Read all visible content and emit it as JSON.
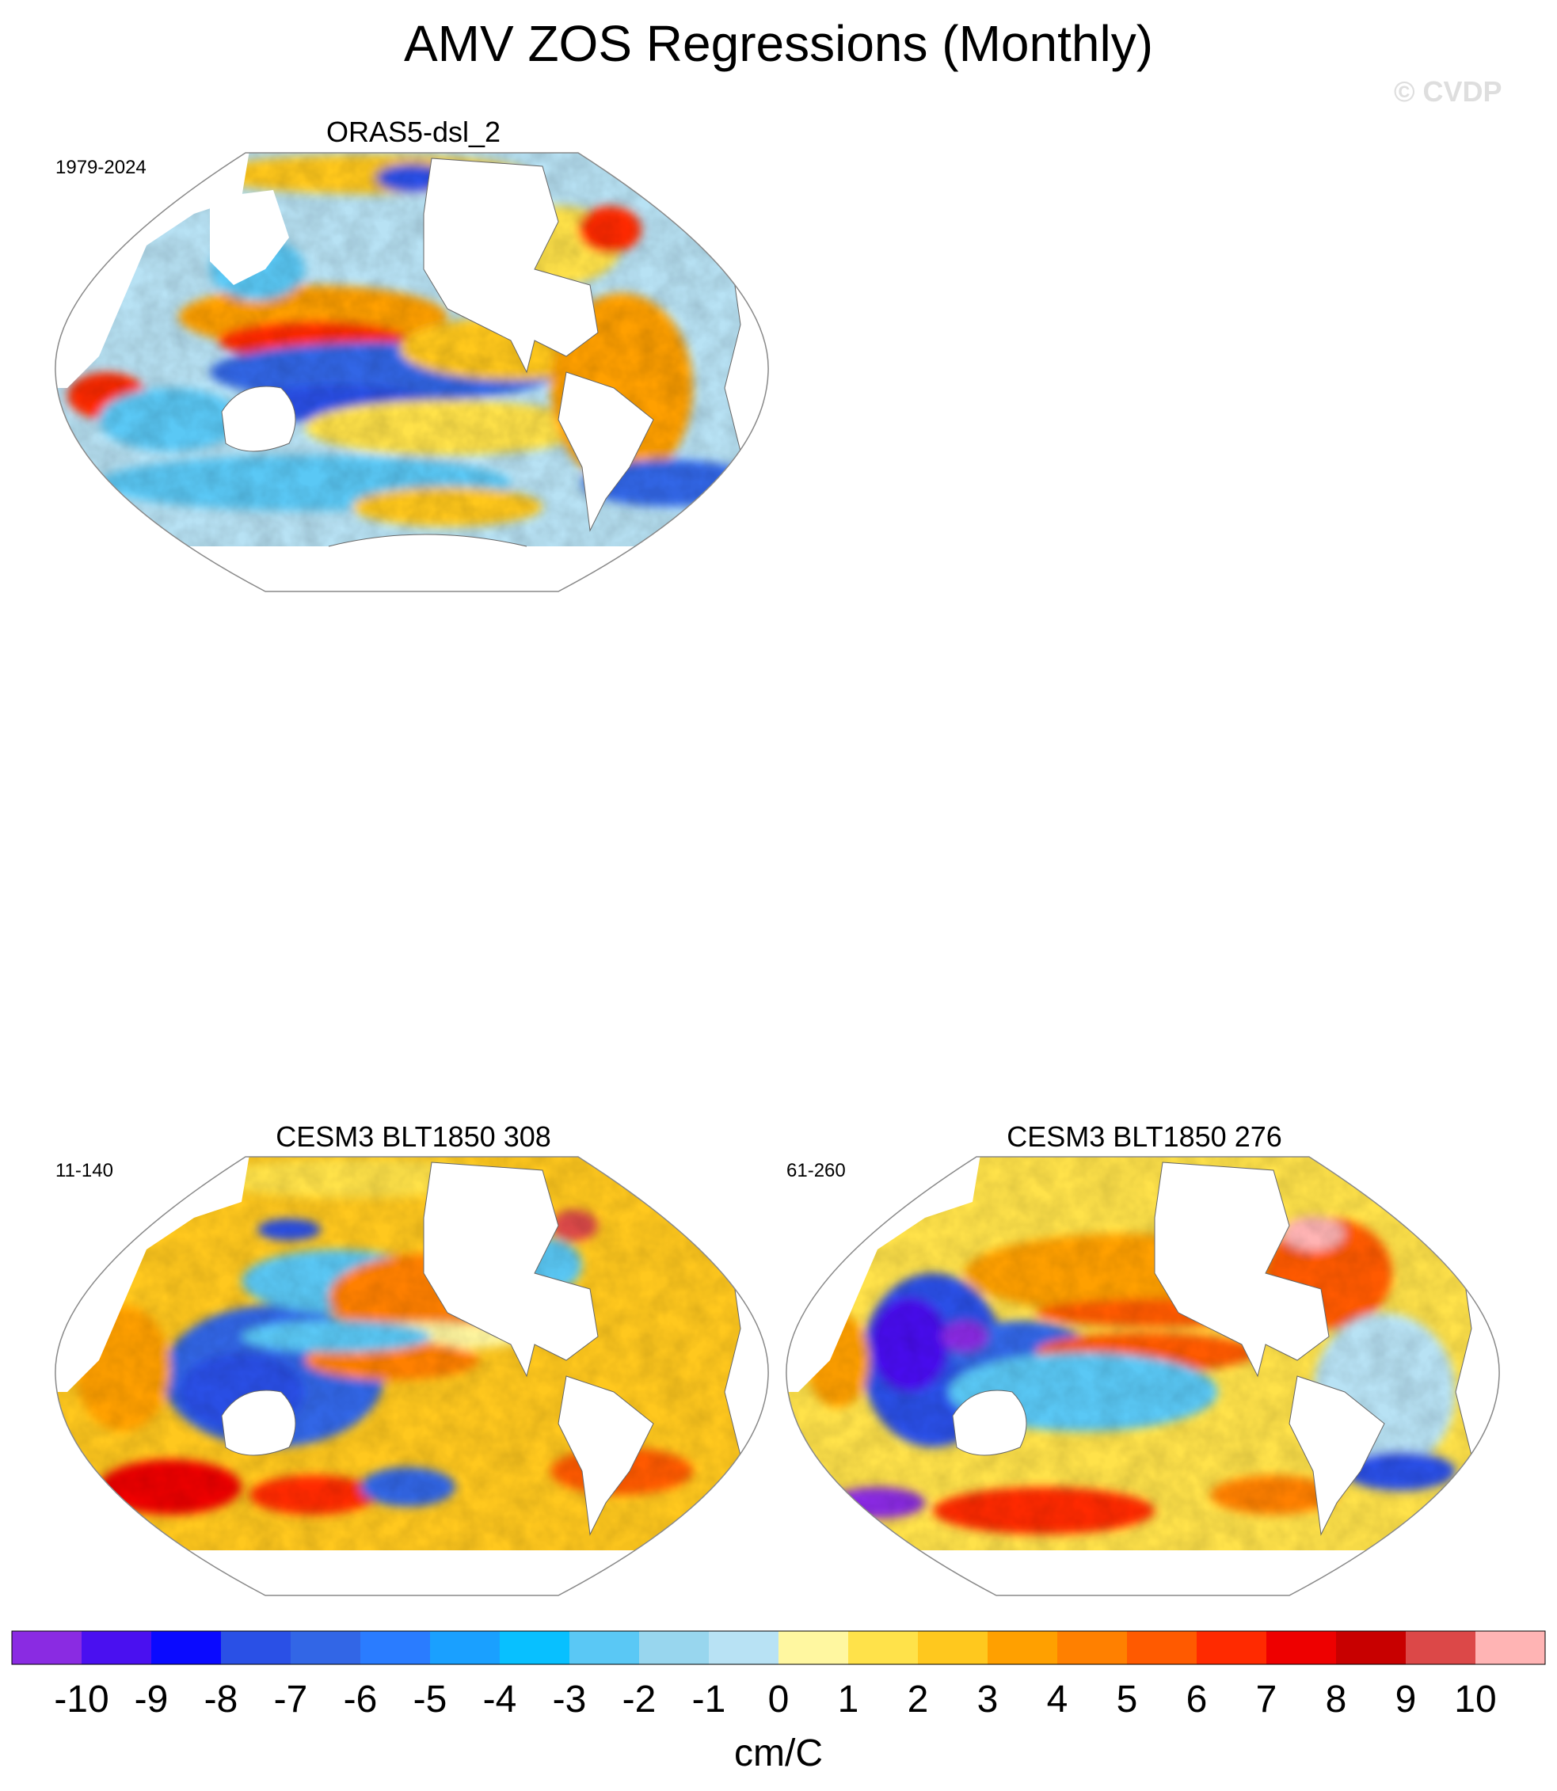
{
  "title": "AMV ZOS Regressions (Monthly)",
  "copyright": "© CVDP",
  "panels": [
    {
      "title": "ORAS5-dsl_2",
      "years": "1979-2024"
    },
    {
      "title": "CESM3 BLT1850 308",
      "years": "11-140"
    },
    {
      "title": "CESM3 BLT1850 276",
      "years": "61-260"
    }
  ],
  "chart_data": {
    "type": "heatmap",
    "title": "AMV ZOS Regressions (Monthly)",
    "units": "cm/C",
    "levels": [
      -10,
      -9,
      -8,
      -7,
      -6,
      -5,
      -4,
      -3,
      -2,
      -1,
      0,
      1,
      2,
      3,
      4,
      5,
      6,
      7,
      8,
      9,
      10
    ],
    "level_labels": [
      "-10",
      "-9",
      "-8",
      "-7",
      "-6",
      "-5",
      "-4",
      "-3",
      "-2",
      "-1",
      "0",
      "1",
      "2",
      "3",
      "4",
      "5",
      "6",
      "7",
      "8",
      "9",
      "10"
    ],
    "colors": [
      "#8a2be2",
      "#4a10f0",
      "#0a0aff",
      "#2a50e6",
      "#3266e6",
      "#2a7cff",
      "#1aa0ff",
      "#08c0ff",
      "#5ac8f5",
      "#98d6ee",
      "#b8e2f4",
      "#fff7a0",
      "#ffe24a",
      "#ffc81e",
      "#ffa000",
      "#ff8000",
      "#ff5a00",
      "#ff2a00",
      "#ee0000",
      "#c80000",
      "#dc4848",
      "#ffb4b4"
    ],
    "projection": "Robinson (Pacific-centered)",
    "panels": [
      "ORAS5-dsl_2",
      "CESM3 BLT1850 308",
      "CESM3 BLT1850 276"
    ]
  }
}
